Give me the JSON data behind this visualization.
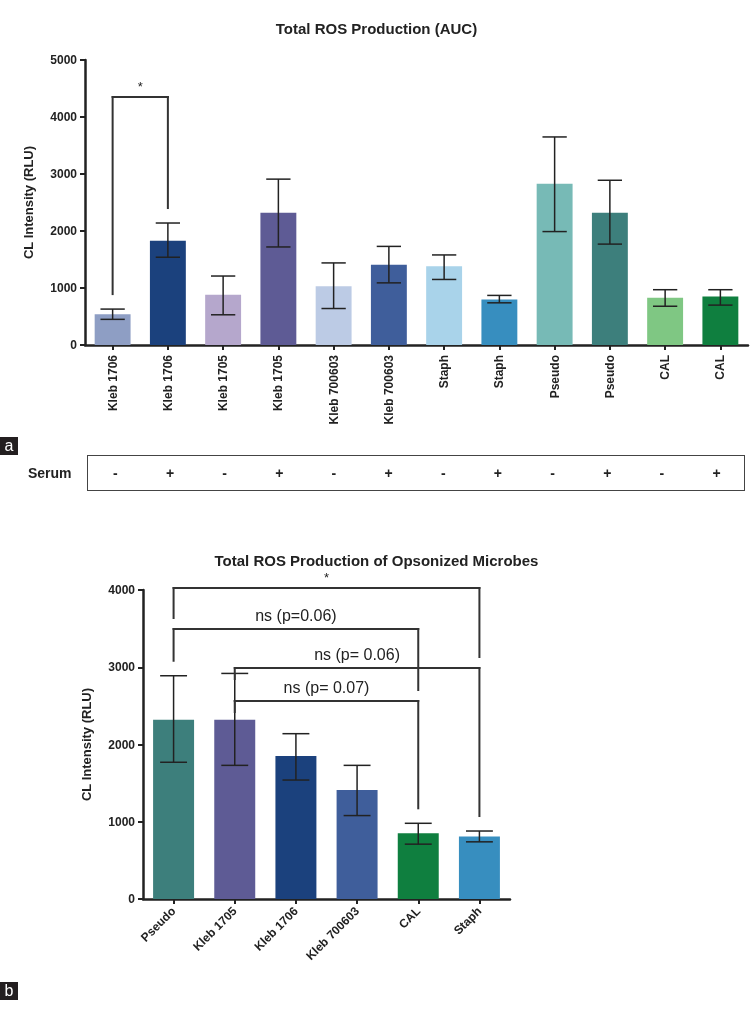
{
  "chart_data": [
    {
      "type": "bar",
      "title": "Total ROS Production (AUC)",
      "ylabel": "CL Intensity (RLU)",
      "categories": [
        "Kleb 1706",
        "Kleb 1706",
        "Kleb 1705",
        "Kleb 1705",
        "Kleb 700603",
        "Kleb 700603",
        "Staph",
        "Staph",
        "Pseudo",
        "Pseudo",
        "CAL",
        "CAL"
      ],
      "values": [
        540,
        1830,
        880,
        2320,
        1030,
        1410,
        1380,
        800,
        2830,
        2320,
        830,
        850
      ],
      "errors": [
        [
          450,
          630
        ],
        [
          1540,
          2140
        ],
        [
          530,
          1210
        ],
        [
          1720,
          2910
        ],
        [
          640,
          1440
        ],
        [
          1090,
          1730
        ],
        [
          1150,
          1580
        ],
        [
          740,
          870
        ],
        [
          1990,
          3650
        ],
        [
          1770,
          2890
        ],
        [
          680,
          970
        ],
        [
          700,
          970
        ]
      ],
      "colors": [
        "#8e9ec4",
        "#1b417d",
        "#b5a7cc",
        "#5e5b95",
        "#bccbe5",
        "#3f5e9b",
        "#a9d3ea",
        "#378ebf",
        "#77bab6",
        "#3d7f7c",
        "#7fc783",
        "#0f7f3f"
      ],
      "ylim": [
        0,
        5000
      ],
      "yticks": [
        0,
        1000,
        2000,
        3000,
        4000,
        5000
      ],
      "grid": false,
      "annotations": [
        "*",
        "a"
      ]
    },
    {
      "type": "other",
      "ylabel": "Serum",
      "categories": [
        "-",
        "+",
        "-",
        "+",
        "-",
        "+",
        "-",
        "+",
        "-",
        "+",
        "-",
        "+"
      ]
    },
    {
      "type": "bar",
      "title": "Total ROS Production of Opsonized Microbes",
      "ylabel": "CL Intensity (RLU)",
      "categories": [
        "Pseudo",
        "Kleb 1705",
        "Kleb 1706",
        "Kleb 700603",
        "CAL",
        "Staph"
      ],
      "values": [
        2320,
        2320,
        1850,
        1410,
        850,
        810
      ],
      "errors": [
        [
          1770,
          2890
        ],
        [
          1730,
          2920
        ],
        [
          1540,
          2140
        ],
        [
          1080,
          1730
        ],
        [
          710,
          980
        ],
        [
          740,
          880
        ]
      ],
      "colors": [
        "#3d7f7c",
        "#5e5b95",
        "#1b417d",
        "#3f5e9b",
        "#0f7f3f",
        "#378ebf"
      ],
      "ylim": [
        0,
        4000
      ],
      "yticks": [
        0,
        1000,
        2000,
        3000,
        4000
      ],
      "grid": false,
      "annotations": [
        "*",
        "ns (p=0.06)",
        "ns (p= 0.06)",
        "ns (p= 0.07)",
        "b"
      ]
    }
  ]
}
